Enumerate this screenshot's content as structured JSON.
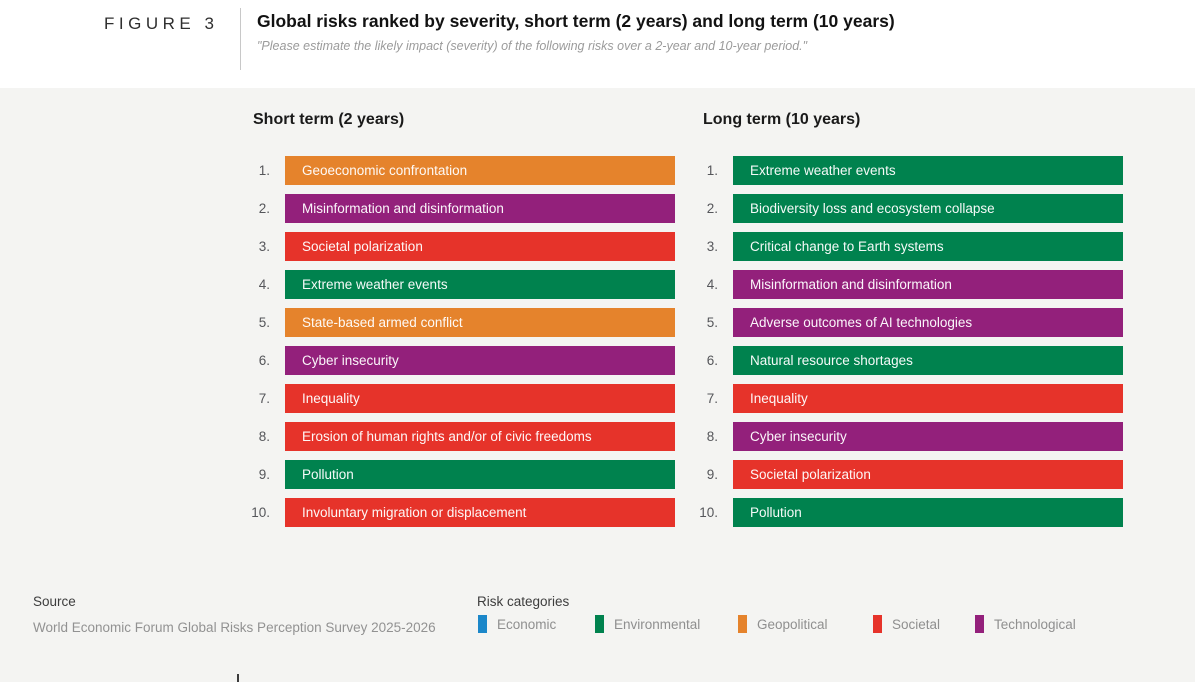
{
  "figure_label": "FIGURE 3",
  "header": {
    "title": "Global risks ranked by severity, short term (2 years) and long term (10 years)",
    "subtitle": "\"Please estimate the likely impact (severity) of the following risks over a 2-year and 10-year period.\""
  },
  "chart_data": {
    "type": "table",
    "description": "Two ranked lists of global risks, color-coded by risk category",
    "columns": [
      {
        "title": "Short term (2 years)",
        "items": [
          {
            "rank": "1.",
            "label": "Geoeconomic confrontation",
            "category": "geopolitical"
          },
          {
            "rank": "2.",
            "label": "Misinformation and disinformation",
            "category": "technological"
          },
          {
            "rank": "3.",
            "label": "Societal polarization",
            "category": "societal"
          },
          {
            "rank": "4.",
            "label": "Extreme weather events",
            "category": "environmental"
          },
          {
            "rank": "5.",
            "label": "State-based armed conflict",
            "category": "geopolitical"
          },
          {
            "rank": "6.",
            "label": "Cyber insecurity",
            "category": "technological"
          },
          {
            "rank": "7.",
            "label": "Inequality",
            "category": "societal"
          },
          {
            "rank": "8.",
            "label": "Erosion of human rights and/or of civic freedoms",
            "category": "societal"
          },
          {
            "rank": "9.",
            "label": "Pollution",
            "category": "environmental"
          },
          {
            "rank": "10.",
            "label": "Involuntary migration or displacement",
            "category": "societal"
          }
        ]
      },
      {
        "title": "Long term (10 years)",
        "items": [
          {
            "rank": "1.",
            "label": "Extreme weather events",
            "category": "environmental"
          },
          {
            "rank": "2.",
            "label": "Biodiversity loss and ecosystem collapse",
            "category": "environmental"
          },
          {
            "rank": "3.",
            "label": "Critical change to Earth systems",
            "category": "environmental"
          },
          {
            "rank": "4.",
            "label": "Misinformation and disinformation",
            "category": "technological"
          },
          {
            "rank": "5.",
            "label": "Adverse outcomes of AI technologies",
            "category": "technological"
          },
          {
            "rank": "6.",
            "label": "Natural resource shortages",
            "category": "environmental"
          },
          {
            "rank": "7.",
            "label": "Inequality",
            "category": "societal"
          },
          {
            "rank": "8.",
            "label": "Cyber insecurity",
            "category": "technological"
          },
          {
            "rank": "9.",
            "label": "Societal polarization",
            "category": "societal"
          },
          {
            "rank": "10.",
            "label": "Pollution",
            "category": "environmental"
          }
        ]
      }
    ],
    "category_colors": {
      "economic": "#1B87C9",
      "environmental": "#00824E",
      "geopolitical": "#E5832C",
      "societal": "#E6332A",
      "technological": "#93207B"
    }
  },
  "footer": {
    "source_label": "Source",
    "source_text": "World Economic Forum Global Risks Perception Survey 2025-2026",
    "legend_title": "Risk categories",
    "legend": [
      {
        "label": "Economic",
        "color": "#1B87C9"
      },
      {
        "label": "Environmental",
        "color": "#00824E"
      },
      {
        "label": "Geopolitical",
        "color": "#E5832C"
      },
      {
        "label": "Societal",
        "color": "#E6332A"
      },
      {
        "label": "Technological",
        "color": "#93207B"
      }
    ]
  }
}
